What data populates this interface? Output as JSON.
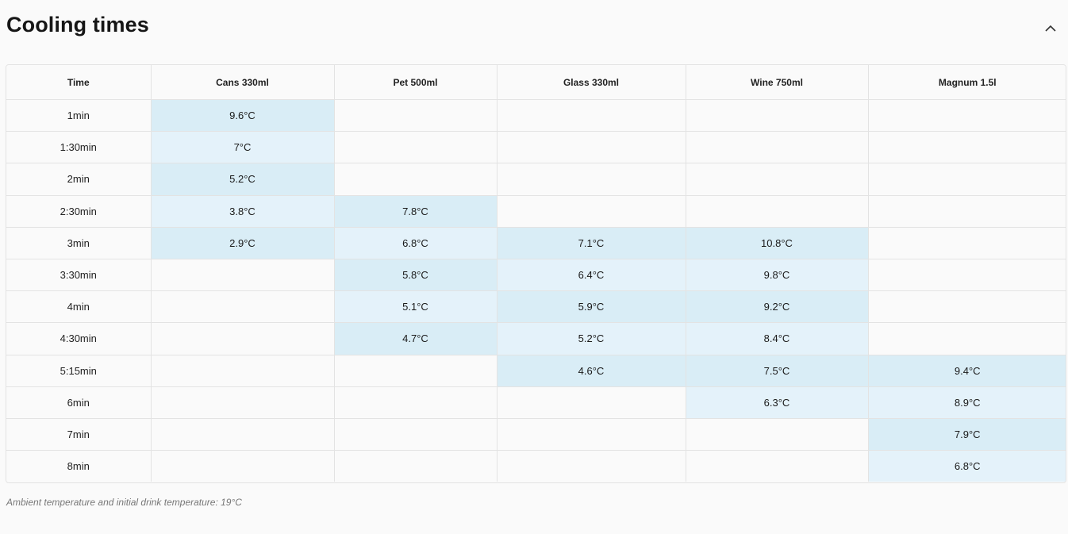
{
  "header": {
    "title": "Cooling times",
    "collapse_icon": "chevron-up-icon"
  },
  "table": {
    "columns": [
      "Time",
      "Cans 330ml",
      "Pet 500ml",
      "Glass 330ml",
      "Wine 750ml",
      "Magnum 1.5l"
    ],
    "rows": [
      {
        "time": "1min",
        "values": [
          "9.6°C",
          "",
          "",
          "",
          ""
        ]
      },
      {
        "time": "1:30min",
        "values": [
          "7°C",
          "",
          "",
          "",
          ""
        ]
      },
      {
        "time": "2min",
        "values": [
          "5.2°C",
          "",
          "",
          "",
          ""
        ]
      },
      {
        "time": "2:30min",
        "values": [
          "3.8°C",
          "7.8°C",
          "",
          "",
          ""
        ]
      },
      {
        "time": "3min",
        "values": [
          "2.9°C",
          "6.8°C",
          "7.1°C",
          "10.8°C",
          ""
        ]
      },
      {
        "time": "3:30min",
        "values": [
          "",
          "5.8°C",
          "6.4°C",
          "9.8°C",
          ""
        ]
      },
      {
        "time": "4min",
        "values": [
          "",
          "5.1°C",
          "5.9°C",
          "9.2°C",
          ""
        ]
      },
      {
        "time": "4:30min",
        "values": [
          "",
          "4.7°C",
          "5.2°C",
          "8.4°C",
          ""
        ]
      },
      {
        "time": "5:15min",
        "values": [
          "",
          "",
          "4.6°C",
          "7.5°C",
          "9.4°C"
        ]
      },
      {
        "time": "6min",
        "values": [
          "",
          "",
          "",
          "6.3°C",
          "8.9°C"
        ]
      },
      {
        "time": "7min",
        "values": [
          "",
          "",
          "",
          "",
          "7.9°C"
        ]
      },
      {
        "time": "8min",
        "values": [
          "",
          "",
          "",
          "",
          "6.8°C"
        ]
      }
    ]
  },
  "colors": {
    "highlight_dark": "#d9edf6",
    "highlight_light": "#e4f2fa",
    "border": "#e3e3e3",
    "background": "#fafafa"
  },
  "note": "Ambient temperature and initial drink temperature: 19°C"
}
